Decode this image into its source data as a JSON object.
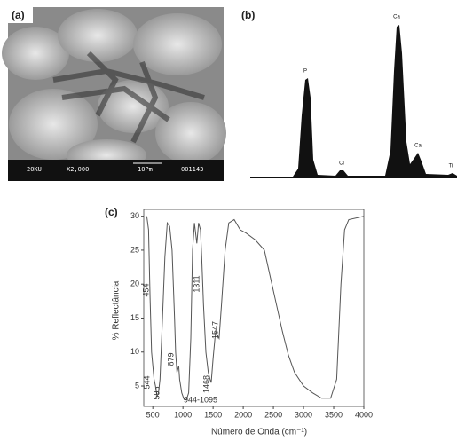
{
  "figure": {
    "panel_a": {
      "label": "(a)",
      "scale_text": [
        "20KU",
        "X2,000",
        "10Pm",
        "001143"
      ]
    },
    "panel_b": {
      "label": "(b)",
      "peaks": [
        "P",
        "Cl",
        "Ca",
        "Ca",
        "Ti"
      ]
    },
    "panel_c": {
      "label": "(c)"
    }
  },
  "chart_data": {
    "type": "line",
    "y_label": "% Reflectância",
    "x_label": "Número de Onda (cm⁻¹)",
    "xlim": [
      350,
      4000
    ],
    "ylim": [
      2,
      31
    ],
    "xticks": [
      500,
      1000,
      1500,
      2000,
      2500,
      3000,
      3500,
      4000
    ],
    "yticks": [
      5,
      10,
      15,
      20,
      25,
      30
    ],
    "annotations": [
      "454",
      "544",
      "595",
      "879",
      "944-1095",
      "1311",
      "1468",
      "1547"
    ],
    "x": [
      400,
      430,
      454,
      480,
      520,
      544,
      570,
      595,
      620,
      660,
      700,
      740,
      780,
      820,
      860,
      879,
      900,
      930,
      944,
      980,
      1020,
      1060,
      1095,
      1130,
      1160,
      1190,
      1230,
      1260,
      1290,
      1311,
      1340,
      1380,
      1420,
      1450,
      1468,
      1500,
      1530,
      1547,
      1570,
      1600,
      1640,
      1700,
      1760,
      1850,
      1950,
      2050,
      2200,
      2350,
      2450,
      2550,
      2650,
      2750,
      2850,
      3000,
      3150,
      3300,
      3450,
      3550,
      3620,
      3680,
      3750,
      4000
    ],
    "series": [
      {
        "color": "#555555",
        "values": [
          30,
          28,
          18,
          10,
          6,
          5,
          3.5,
          4,
          6,
          15,
          24,
          29,
          28.5,
          25,
          15,
          10,
          7,
          8,
          6,
          4,
          3,
          3,
          4,
          12,
          25,
          29,
          26,
          29,
          28,
          24,
          17,
          10,
          7,
          6,
          5.5,
          9,
          12,
          13,
          12.5,
          12,
          17,
          25,
          29,
          29.5,
          28,
          27.5,
          26.5,
          25,
          21,
          17,
          13,
          9.5,
          7,
          5,
          4,
          3.2,
          3.2,
          6,
          20,
          28,
          29.5,
          30
        ]
      }
    ]
  }
}
